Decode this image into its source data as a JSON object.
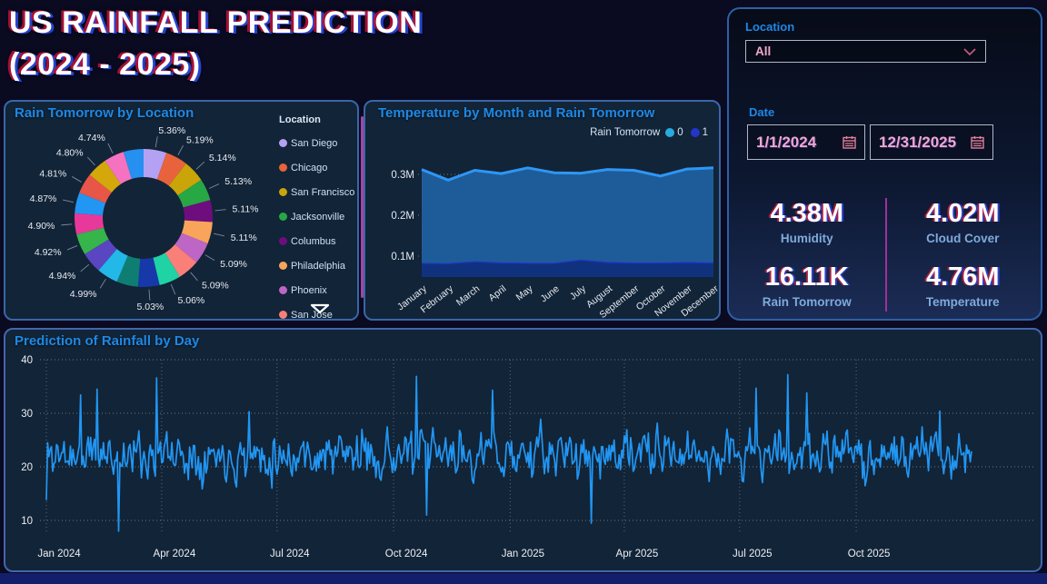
{
  "page": {
    "title_line1": "US RAINFALL PREDICTION",
    "title_line2": "(2024 - 2025)"
  },
  "colors": {
    "accent": "#1E88E5",
    "page_bg": "#0A0A20",
    "card_bg": "#122437",
    "pink_text": "#F0A9C9",
    "kpi_divider": "#A0309A",
    "footer_bar": "#131F6B",
    "legend_scrollbar": "#A346A6"
  },
  "filters": {
    "location_label": "Location",
    "location_value": "All",
    "date_label": "Date",
    "date_start": "1/1/2024",
    "date_end": "12/31/2025"
  },
  "kpis": [
    {
      "value": "4.38M",
      "label": "Humidity"
    },
    {
      "value": "4.02M",
      "label": "Cloud Cover"
    },
    {
      "value": "16.11K",
      "label": "Rain Tomorrow"
    },
    {
      "value": "4.76M",
      "label": "Temperature"
    }
  ],
  "chart_data": [
    {
      "type": "pie",
      "title": "Rain Tomorrow by Location",
      "legend_title": "Location",
      "legend_visible_count": 8,
      "slices": [
        {
          "location": "San Diego",
          "value": 5.36,
          "label": "5.36%",
          "color": "#B5A1F3"
        },
        {
          "location": "Chicago",
          "value": 5.19,
          "label": "5.19%",
          "color": "#E8633C"
        },
        {
          "location": "San Francisco",
          "value": 5.14,
          "label": "5.14%",
          "color": "#C9A50A"
        },
        {
          "location": "Jacksonville",
          "value": 5.13,
          "label": "5.13%",
          "color": "#28A745"
        },
        {
          "location": "Columbus",
          "value": 5.11,
          "label": "5.11%",
          "color": "#6E0D7E"
        },
        {
          "location": "Philadelphia",
          "value": 5.11,
          "label": "5.11%",
          "color": "#F9A45B"
        },
        {
          "location": "Phoenix",
          "value": 5.09,
          "label": "5.09%",
          "color": "#BD66C5"
        },
        {
          "location": "San Jose",
          "value": 5.09,
          "label": "5.09%",
          "color": "#FA7F78"
        },
        {
          "value": 5.06,
          "label": "5.06%",
          "color": "#1FD3A5"
        },
        {
          "value": 5.03,
          "label": "5.03%",
          "color": "#1638A8"
        },
        {
          "value": 5.01,
          "label": "",
          "color": "#0F7E72"
        },
        {
          "value": 4.99,
          "label": "4.99%",
          "color": "#22B8E8"
        },
        {
          "value": 4.94,
          "label": "4.94%",
          "color": "#5A46C0"
        },
        {
          "value": 4.92,
          "label": "4.92%",
          "color": "#35B54A"
        },
        {
          "value": 4.9,
          "label": "4.90%",
          "color": "#E8399A"
        },
        {
          "value": 4.87,
          "label": "4.87%",
          "color": "#2196F3"
        },
        {
          "value": 4.81,
          "label": "4.81%",
          "color": "#E85648"
        },
        {
          "value": 4.8,
          "label": "4.80%",
          "color": "#D4A80B"
        },
        {
          "value": 4.74,
          "label": "4.74%",
          "color": "#F472C0"
        },
        {
          "value": 4.71,
          "label": "",
          "color": "#2590F0"
        }
      ]
    },
    {
      "type": "area",
      "title": "Temperature by Month and Rain Tomorrow",
      "legend_title": "Rain Tomorrow",
      "categories": [
        "January",
        "February",
        "March",
        "April",
        "May",
        "June",
        "July",
        "August",
        "September",
        "October",
        "November",
        "December"
      ],
      "series": [
        {
          "name": "0",
          "color_line": "#2E96F5",
          "color_fill": "#1E5C99",
          "values": [
            0.228,
            0.203,
            0.222,
            0.217,
            0.232,
            0.22,
            0.211,
            0.226,
            0.225,
            0.211,
            0.227,
            0.231
          ]
        },
        {
          "name": "1",
          "color_line": "#2336C8",
          "color_fill": "#10317E",
          "values": [
            0.084,
            0.083,
            0.088,
            0.085,
            0.084,
            0.084,
            0.092,
            0.086,
            0.085,
            0.085,
            0.086,
            0.085
          ]
        }
      ],
      "y_ticks": [
        {
          "v": 0.3,
          "label": "0.3M"
        },
        {
          "v": 0.2,
          "label": "0.2M"
        },
        {
          "v": 0.1,
          "label": "0.1M"
        }
      ],
      "ylim": [
        0.05,
        0.33
      ],
      "stacked": true,
      "grid": "dotted"
    },
    {
      "type": "line",
      "title": "Prediction of Rainfall by Day",
      "color": "#2196F3",
      "y_ticks": [
        10,
        20,
        30,
        40
      ],
      "ylim": [
        7,
        40
      ],
      "x_ticks": [
        {
          "day": 0,
          "label": "Jan 2024"
        },
        {
          "day": 91,
          "label": "Apr 2024"
        },
        {
          "day": 182,
          "label": "Jul 2024"
        },
        {
          "day": 274,
          "label": "Oct 2024"
        },
        {
          "day": 366,
          "label": "Jan 2025"
        },
        {
          "day": 456,
          "label": "Apr 2025"
        },
        {
          "day": 547,
          "label": "Jul 2025"
        },
        {
          "day": 639,
          "label": "Oct 2025"
        }
      ],
      "n_days": 731,
      "gen": {
        "seed": 11,
        "mean": 22.3,
        "spread": 9.5,
        "ar": 0.35,
        "clamp_lo": 12.8,
        "clamp_hi": 31.5
      },
      "anomalies": [
        [
          0,
          13.8
        ],
        [
          27,
          33.4
        ],
        [
          40,
          34.5
        ],
        [
          57,
          8.0
        ],
        [
          87,
          36.6
        ],
        [
          160,
          30.3
        ],
        [
          292,
          36.9
        ],
        [
          300,
          11.0
        ],
        [
          352,
          34.3
        ],
        [
          430,
          9.5
        ],
        [
          560,
          34.7
        ],
        [
          585,
          37.2
        ],
        [
          600,
          33.8
        ],
        [
          705,
          30.4
        ]
      ],
      "grid": "dotted"
    }
  ]
}
